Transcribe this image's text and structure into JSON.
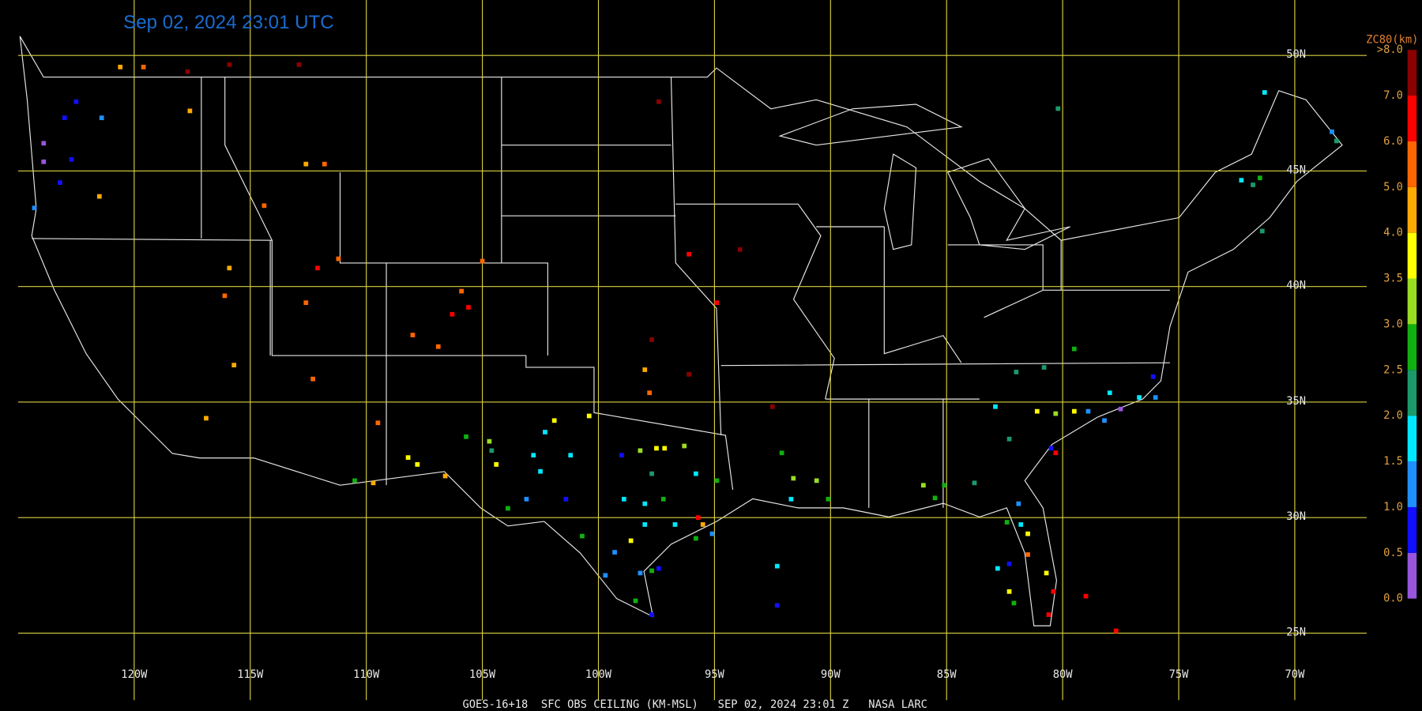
{
  "title": "Sep 02, 2024 23:01 UTC",
  "footer": "GOES-16+18  SFC OBS CEILING (KM-MSL)   SEP 02, 2024 23:01 Z   NASA LARC",
  "map": {
    "xlim": [
      -125,
      -66.9
    ],
    "ylim": [
      22.1,
      52.4
    ],
    "lon_ticks": [
      {
        "value": -120,
        "label": "120W"
      },
      {
        "value": -115,
        "label": "115W"
      },
      {
        "value": -110,
        "label": "110W"
      },
      {
        "value": -105,
        "label": "105W"
      },
      {
        "value": -100,
        "label": "100W"
      },
      {
        "value": -95,
        "label": "95W"
      },
      {
        "value": -90,
        "label": "90W"
      },
      {
        "value": -85,
        "label": "85W"
      },
      {
        "value": -80,
        "label": "80W"
      },
      {
        "value": -75,
        "label": "75W"
      },
      {
        "value": -70,
        "label": "70W"
      }
    ],
    "lat_ticks": [
      {
        "value": 50,
        "label": "50N"
      },
      {
        "value": 45,
        "label": "45N"
      },
      {
        "value": 40,
        "label": "40N"
      },
      {
        "value": 35,
        "label": "35N"
      },
      {
        "value": 30,
        "label": "30N"
      },
      {
        "value": 25,
        "label": "25N"
      }
    ],
    "grid_color": "#d8d040"
  },
  "colorbar": {
    "title": "ZC80(km)",
    "ticks": [
      {
        "value": 0,
        "label": "0.0"
      },
      {
        "value": 0.5,
        "label": "0.5"
      },
      {
        "value": 1,
        "label": "1.0"
      },
      {
        "value": 1.5,
        "label": "1.5"
      },
      {
        "value": 2,
        "label": "2.0"
      },
      {
        "value": 2.5,
        "label": "2.5"
      },
      {
        "value": 3,
        "label": "3.0"
      },
      {
        "value": 3.5,
        "label": "3.5"
      },
      {
        "value": 4,
        "label": "4.0"
      },
      {
        "value": 5,
        "label": "5.0"
      },
      {
        "value": 6,
        "label": "6.0"
      },
      {
        "value": 7,
        "label": "7.0"
      },
      {
        "value": 8,
        "label": ">8.0"
      }
    ],
    "colors": [
      "#9955dd",
      "#1010ff",
      "#1e90ff",
      "#00e8ff",
      "#1a9a6a",
      "#10b010",
      "#99dd22",
      "#ffff00",
      "#ffaa00",
      "#ff6600",
      "#ff0000",
      "#8b0000"
    ]
  },
  "stations": [
    [
      -120.6,
      49.5,
      4.5
    ],
    [
      -119.6,
      49.5,
      5.5
    ],
    [
      -117.7,
      49.3,
      7.5
    ],
    [
      -115.9,
      49.6,
      7.5
    ],
    [
      -112.9,
      49.6,
      7.5
    ],
    [
      -117.6,
      47.6,
      4.5
    ],
    [
      -121.4,
      47.3,
      1.2
    ],
    [
      -122.5,
      48.0,
      0.8
    ],
    [
      -123.0,
      47.3,
      0.8
    ],
    [
      -122.7,
      45.5,
      0.8
    ],
    [
      -123.9,
      46.2,
      0.3
    ],
    [
      -123.9,
      45.4,
      0.3
    ],
    [
      -123.2,
      44.5,
      0.8
    ],
    [
      -124.3,
      43.4,
      1.2
    ],
    [
      -121.5,
      43.9,
      4.5
    ],
    [
      -114.4,
      43.5,
      5.5
    ],
    [
      -112.6,
      45.3,
      4.5
    ],
    [
      -111.8,
      45.3,
      5.5
    ],
    [
      -115.9,
      40.8,
      4.5
    ],
    [
      -116.1,
      39.6,
      5.5
    ],
    [
      -112.6,
      39.3,
      5.5
    ],
    [
      -112.1,
      40.8,
      6.5
    ],
    [
      -111.2,
      41.2,
      5.5
    ],
    [
      -105.0,
      41.1,
      5.5
    ],
    [
      -105.9,
      39.8,
      5.5
    ],
    [
      -106.3,
      38.8,
      6.5
    ],
    [
      -105.6,
      39.1,
      6.5
    ],
    [
      -108.0,
      37.9,
      5.5
    ],
    [
      -106.9,
      37.4,
      5.5
    ],
    [
      -112.3,
      36.0,
      5.5
    ],
    [
      -115.7,
      36.6,
      4.5
    ],
    [
      -116.9,
      34.3,
      4.5
    ],
    [
      -109.5,
      34.1,
      5.5
    ],
    [
      -110.5,
      31.6,
      2.8
    ],
    [
      -109.7,
      31.5,
      4.5
    ],
    [
      -108.2,
      32.6,
      3.8
    ],
    [
      -107.8,
      32.3,
      3.8
    ],
    [
      -106.6,
      31.8,
      4.5
    ],
    [
      -104.4,
      32.3,
      3.8
    ],
    [
      -105.7,
      33.5,
      2.8
    ],
    [
      -104.7,
      33.3,
      3.2
    ],
    [
      -104.6,
      32.9,
      2.2
    ],
    [
      -101.9,
      34.2,
      3.8
    ],
    [
      -102.3,
      33.7,
      1.8
    ],
    [
      -102.8,
      32.7,
      1.8
    ],
    [
      -102.5,
      32.0,
      1.8
    ],
    [
      -100.4,
      34.4,
      3.8
    ],
    [
      -101.2,
      32.7,
      1.8
    ],
    [
      -101.4,
      30.8,
      0.8
    ],
    [
      -103.1,
      30.8,
      1.2
    ],
    [
      -103.9,
      30.4,
      2.8
    ],
    [
      -99.0,
      32.7,
      0.8
    ],
    [
      -98.2,
      32.9,
      3.2
    ],
    [
      -97.5,
      33.0,
      3.8
    ],
    [
      -97.15,
      33.0,
      3.8
    ],
    [
      -96.3,
      33.1,
      3.2
    ],
    [
      -97.7,
      31.9,
      2.2
    ],
    [
      -97.2,
      30.8,
      2.8
    ],
    [
      -98.0,
      30.6,
      1.8
    ],
    [
      -98.9,
      30.8,
      1.8
    ],
    [
      -94.9,
      31.6,
      2.8
    ],
    [
      -95.8,
      31.9,
      1.8
    ],
    [
      -95.7,
      30.0,
      6.5
    ],
    [
      -95.5,
      29.7,
      4.5
    ],
    [
      -95.1,
      29.3,
      1.2
    ],
    [
      -95.8,
      29.1,
      2.8
    ],
    [
      -96.7,
      29.7,
      1.8
    ],
    [
      -98.0,
      29.7,
      1.8
    ],
    [
      -98.6,
      29.0,
      3.8
    ],
    [
      -99.3,
      28.5,
      1.2
    ],
    [
      -99.7,
      27.5,
      1.2
    ],
    [
      -98.2,
      27.6,
      1.2
    ],
    [
      -97.7,
      27.7,
      2.8
    ],
    [
      -97.4,
      27.8,
      0.8
    ],
    [
      -98.4,
      26.4,
      2.8
    ],
    [
      -97.7,
      25.8,
      0.8
    ],
    [
      -100.7,
      29.2,
      2.8
    ],
    [
      -97.7,
      37.7,
      7.5
    ],
    [
      -98.0,
      36.4,
      4.5
    ],
    [
      -97.8,
      35.4,
      5.5
    ],
    [
      -96.1,
      36.2,
      7.5
    ],
    [
      -93.9,
      41.6,
      7.5
    ],
    [
      -97.4,
      48.0,
      7.5
    ],
    [
      -96.1,
      41.4,
      6.5
    ],
    [
      -94.9,
      39.3,
      6.5
    ],
    [
      -92.5,
      34.8,
      7.5
    ],
    [
      -92.1,
      32.8,
      2.8
    ],
    [
      -91.6,
      31.7,
      3.2
    ],
    [
      -91.7,
      30.8,
      1.8
    ],
    [
      -90.6,
      31.6,
      3.2
    ],
    [
      -90.1,
      30.8,
      2.8
    ],
    [
      -92.3,
      27.9,
      1.8
    ],
    [
      -92.3,
      26.2,
      0.8
    ],
    [
      -86.0,
      31.4,
      3.2
    ],
    [
      -85.1,
      31.4,
      2.8
    ],
    [
      -85.5,
      30.85,
      2.8
    ],
    [
      -83.8,
      31.5,
      2.2
    ],
    [
      -82.3,
      33.4,
      2.2
    ],
    [
      -82.9,
      34.8,
      1.8
    ],
    [
      -81.1,
      34.6,
      3.8
    ],
    [
      -80.3,
      34.5,
      3.2
    ],
    [
      -79.5,
      34.6,
      3.8
    ],
    [
      -78.9,
      34.6,
      1.2
    ],
    [
      -78.2,
      34.2,
      1.2
    ],
    [
      -77.5,
      34.7,
      0.3
    ],
    [
      -76.7,
      35.2,
      1.8
    ],
    [
      -76.0,
      35.2,
      1.2
    ],
    [
      -76.1,
      36.1,
      0.8
    ],
    [
      -77.97,
      35.4,
      1.8
    ],
    [
      -79.5,
      37.3,
      2.8
    ],
    [
      -82.0,
      36.3,
      2.2
    ],
    [
      -80.8,
      36.5,
      2.2
    ],
    [
      -80.5,
      33.0,
      0.8
    ],
    [
      -80.3,
      32.8,
      6.5
    ],
    [
      -81.9,
      30.6,
      1.2
    ],
    [
      -81.8,
      29.7,
      1.8
    ],
    [
      -82.4,
      29.8,
      2.8
    ],
    [
      -81.5,
      29.3,
      3.8
    ],
    [
      -81.5,
      28.4,
      5.5
    ],
    [
      -82.3,
      28.0,
      0.8
    ],
    [
      -82.8,
      27.8,
      1.8
    ],
    [
      -82.3,
      26.8,
      3.8
    ],
    [
      -82.1,
      26.3,
      2.8
    ],
    [
      -80.7,
      27.6,
      3.8
    ],
    [
      -80.4,
      26.8,
      6.5
    ],
    [
      -80.6,
      25.8,
      6.5
    ],
    [
      -79.0,
      26.6,
      6.5
    ],
    [
      -77.7,
      25.1,
      6.5
    ],
    [
      -80.2,
      47.7,
      2.2
    ],
    [
      -71.3,
      48.4,
      1.8
    ],
    [
      -68.4,
      46.7,
      1.2
    ],
    [
      -68.2,
      46.3,
      2.2
    ],
    [
      -72.3,
      44.6,
      1.8
    ],
    [
      -71.8,
      44.4,
      2.2
    ],
    [
      -71.5,
      44.7,
      2.8
    ],
    [
      -71.4,
      42.4,
      2.2
    ]
  ]
}
